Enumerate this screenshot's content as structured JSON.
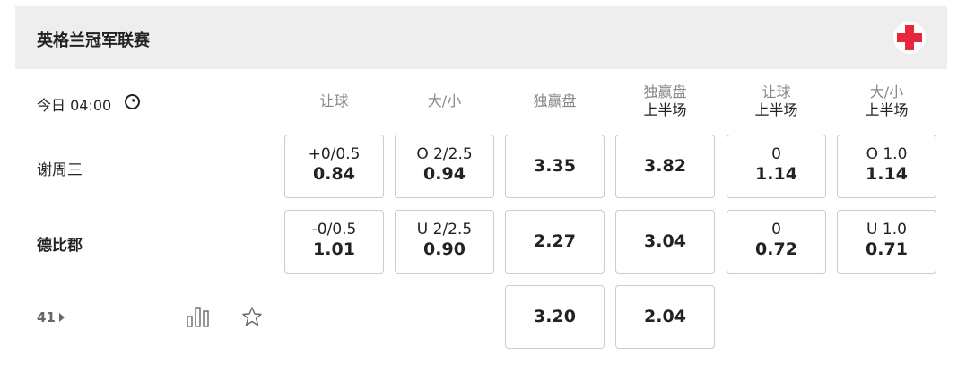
{
  "league": {
    "title": "英格兰冠军联赛",
    "flag_icon": "england-flag-icon",
    "flag_color": "#e8263c"
  },
  "match": {
    "time": "今日 04:00",
    "home": "谢周三",
    "away": "德比郡",
    "more_count": "41"
  },
  "columns": [
    {
      "label": "让球",
      "sub": ""
    },
    {
      "label": "大/小",
      "sub": ""
    },
    {
      "label": "独赢盘",
      "sub": ""
    },
    {
      "label": "独赢盘",
      "sub": "上半场"
    },
    {
      "label": "让球",
      "sub": "上半场"
    },
    {
      "label": "大/小",
      "sub": "上半场"
    }
  ],
  "rows": [
    [
      {
        "line": "+0/0.5",
        "odds": "0.84"
      },
      {
        "line": "O 2/2.5",
        "odds": "0.94"
      },
      {
        "line": "",
        "odds": "3.35"
      },
      {
        "line": "",
        "odds": "3.82"
      },
      {
        "line": "0",
        "odds": "1.14"
      },
      {
        "line": "O 1.0",
        "odds": "1.14"
      }
    ],
    [
      {
        "line": "-0/0.5",
        "odds": "1.01"
      },
      {
        "line": "U 2/2.5",
        "odds": "0.90"
      },
      {
        "line": "",
        "odds": "2.27"
      },
      {
        "line": "",
        "odds": "3.04"
      },
      {
        "line": "0",
        "odds": "0.72"
      },
      {
        "line": "U 1.0",
        "odds": "0.71"
      }
    ],
    [
      null,
      null,
      {
        "line": "",
        "odds": "3.20"
      },
      {
        "line": "",
        "odds": "2.04"
      },
      null,
      null
    ]
  ]
}
